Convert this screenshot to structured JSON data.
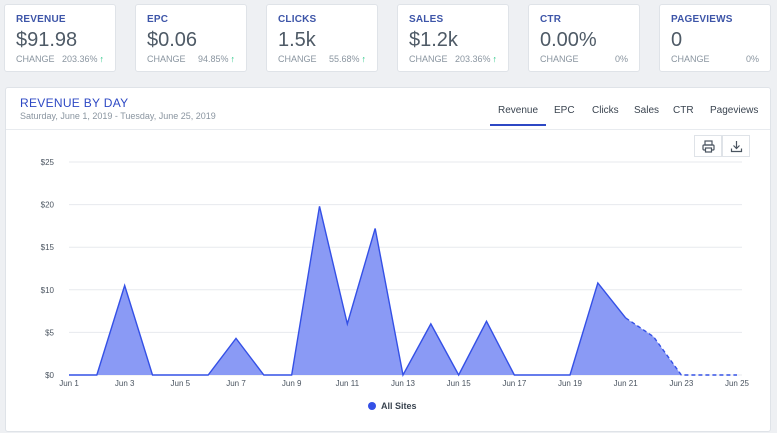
{
  "cards": [
    {
      "label": "REVENUE",
      "value": "$91.98",
      "change_label": "CHANGE",
      "change": "203.36%",
      "arrow": "up"
    },
    {
      "label": "EPC",
      "value": "$0.06",
      "change_label": "CHANGE",
      "change": "94.85%",
      "arrow": "up"
    },
    {
      "label": "CLICKS",
      "value": "1.5k",
      "change_label": "CHANGE",
      "change": "55.68%",
      "arrow": "up"
    },
    {
      "label": "SALES",
      "value": "$1.2k",
      "change_label": "CHANGE",
      "change": "203.36%",
      "arrow": "up"
    },
    {
      "label": "CTR",
      "value": "0.00%",
      "change_label": "CHANGE",
      "change": "0%",
      "arrow": ""
    },
    {
      "label": "PAGEVIEWS",
      "value": "0",
      "change_label": "CHANGE",
      "change": "0%",
      "arrow": ""
    }
  ],
  "panel": {
    "title": "REVENUE BY DAY",
    "subtitle": "Saturday, June 1, 2019 - Tuesday, June 25, 2019",
    "tabs": [
      "Revenue",
      "EPC",
      "Clicks",
      "Sales",
      "CTR",
      "Pageviews"
    ],
    "active_tab": "Revenue",
    "print_icon": "printer-icon",
    "download_icon": "download-icon"
  },
  "chart_data": {
    "type": "area",
    "x": [
      "Jun 1",
      "Jun 2",
      "Jun 3",
      "Jun 4",
      "Jun 5",
      "Jun 6",
      "Jun 7",
      "Jun 8",
      "Jun 9",
      "Jun 10",
      "Jun 11",
      "Jun 12",
      "Jun 13",
      "Jun 14",
      "Jun 15",
      "Jun 16",
      "Jun 17",
      "Jun 18",
      "Jun 19",
      "Jun 20",
      "Jun 21",
      "Jun 22",
      "Jun 23",
      "Jun 24",
      "Jun 25"
    ],
    "x_ticks": [
      "Jun 1",
      "Jun 3",
      "Jun 5",
      "Jun 7",
      "Jun 9",
      "Jun 11",
      "Jun 13",
      "Jun 15",
      "Jun 17",
      "Jun 19",
      "Jun 21",
      "Jun 23",
      "Jun 25"
    ],
    "series": [
      {
        "name": "All Sites",
        "values": [
          0,
          0,
          10.5,
          0,
          0,
          0,
          4.3,
          0,
          0,
          19.8,
          6,
          17.2,
          0,
          6,
          0,
          6.3,
          0,
          0,
          0,
          10.8,
          6.7,
          4.5,
          0,
          0,
          0
        ],
        "projected_from_index": 20
      }
    ],
    "ylim": [
      0,
      25
    ],
    "y_ticks": [
      "$0",
      "$5",
      "$10",
      "$15",
      "$20",
      "$25"
    ],
    "grid": true,
    "legend": "bottom-center",
    "color": "#3450e6",
    "fill": "#8a9af5"
  }
}
